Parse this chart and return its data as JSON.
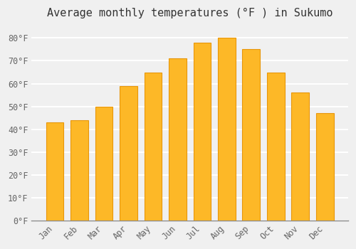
{
  "months": [
    "Jan",
    "Feb",
    "Mar",
    "Apr",
    "May",
    "Jun",
    "Jul",
    "Aug",
    "Sep",
    "Oct",
    "Nov",
    "Dec"
  ],
  "temperatures": [
    43,
    44,
    50,
    59,
    65,
    71,
    78,
    80,
    75,
    65,
    56,
    47
  ],
  "bar_color": "#FDB827",
  "bar_edge_color": "#E8960A",
  "background_color": "#F0F0F0",
  "plot_bg_color": "#F0F0F0",
  "grid_color": "#FFFFFF",
  "title": "Average monthly temperatures (°F ) in Sukumo",
  "title_fontsize": 11,
  "ylabel_ticks": [
    "0°F",
    "10°F",
    "20°F",
    "30°F",
    "40°F",
    "50°F",
    "60°F",
    "70°F",
    "80°F"
  ],
  "ytick_values": [
    0,
    10,
    20,
    30,
    40,
    50,
    60,
    70,
    80
  ],
  "ylim": [
    0,
    86
  ],
  "tick_fontsize": 8.5,
  "font_family": "monospace",
  "tick_color": "#666666"
}
